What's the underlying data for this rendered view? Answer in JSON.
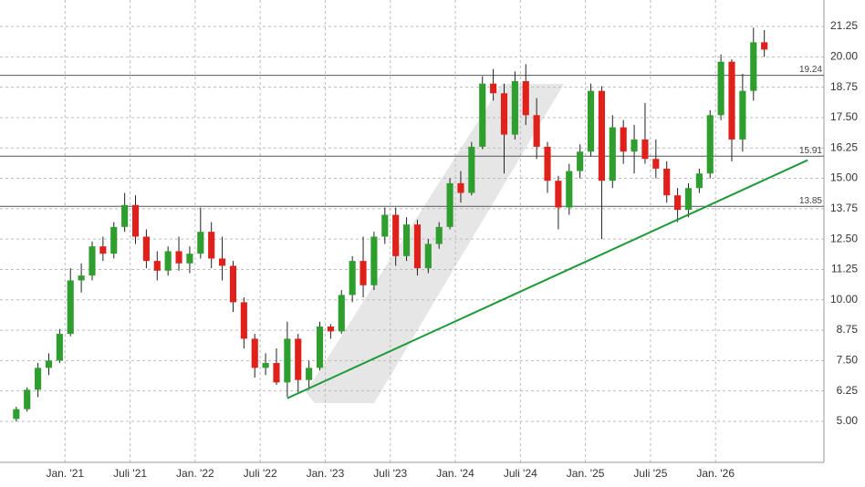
{
  "chart_data": {
    "type": "candlestick",
    "x": [
      "2020-08",
      "2020-09",
      "2020-10",
      "2020-11",
      "2020-12",
      "2021-01",
      "2021-02",
      "2021-03",
      "2021-04",
      "2021-05",
      "2021-06",
      "2021-07",
      "2021-08",
      "2021-09",
      "2021-10",
      "2021-11",
      "2021-12",
      "2022-01",
      "2022-02",
      "2022-03",
      "2022-04",
      "2022-05",
      "2022-06",
      "2022-07",
      "2022-08",
      "2022-09",
      "2022-10",
      "2022-11",
      "2022-12",
      "2023-01",
      "2023-02",
      "2023-03",
      "2023-04",
      "2023-05",
      "2023-06",
      "2023-07",
      "2023-08",
      "2023-09",
      "2023-10",
      "2023-11",
      "2023-12",
      "2024-01",
      "2024-02",
      "2024-03",
      "2024-04",
      "2024-05",
      "2024-06",
      "2024-07",
      "2024-08",
      "2024-09",
      "2024-10",
      "2024-11",
      "2024-12",
      "2025-01",
      "2025-02",
      "2025-03",
      "2025-04",
      "2025-05",
      "2025-06",
      "2025-07",
      "2025-08",
      "2025-09",
      "2025-10",
      "2025-11",
      "2025-12",
      "2026-01",
      "2026-02",
      "2026-03",
      "2026-04",
      "2026-05"
    ],
    "open": [
      5.1,
      5.5,
      6.3,
      7.2,
      7.5,
      8.6,
      10.8,
      11.0,
      12.2,
      11.9,
      13.0,
      13.9,
      12.6,
      11.6,
      11.2,
      12.0,
      11.5,
      11.9,
      12.8,
      11.7,
      11.4,
      9.9,
      8.4,
      7.2,
      7.4,
      6.6,
      8.4,
      6.7,
      7.2,
      8.9,
      8.7,
      10.2,
      11.6,
      10.6,
      12.6,
      13.5,
      11.8,
      13.1,
      11.3,
      12.3,
      13.0,
      14.8,
      14.4,
      16.3,
      18.9,
      18.5,
      16.8,
      19.0,
      17.6,
      16.3,
      14.9,
      13.8,
      15.3,
      16.1,
      18.6,
      14.9,
      17.1,
      16.1,
      16.6,
      15.8,
      15.4,
      14.3,
      13.7,
      14.6,
      15.2,
      17.6,
      19.8,
      16.6,
      18.6,
      20.6
    ],
    "high": [
      5.6,
      6.4,
      7.4,
      7.8,
      8.8,
      11.3,
      11.5,
      12.4,
      12.6,
      13.2,
      14.4,
      14.3,
      12.9,
      12.0,
      12.2,
      12.6,
      12.2,
      13.8,
      13.2,
      12.6,
      11.6,
      10.1,
      8.6,
      7.8,
      8.0,
      9.1,
      8.6,
      7.5,
      9.1,
      9.0,
      10.4,
      11.8,
      12.6,
      12.8,
      13.8,
      13.8,
      13.4,
      13.3,
      12.5,
      13.2,
      15.0,
      15.3,
      16.5,
      19.2,
      19.5,
      18.9,
      19.4,
      19.7,
      18.3,
      16.5,
      15.1,
      15.6,
      16.4,
      18.9,
      18.8,
      17.6,
      17.4,
      17.2,
      18.1,
      16.6,
      15.7,
      14.6,
      14.8,
      15.4,
      17.8,
      20.1,
      19.9,
      19.3,
      21.2,
      21.1
    ],
    "low": [
      5.0,
      5.4,
      6.0,
      6.9,
      7.4,
      8.5,
      10.3,
      10.8,
      11.6,
      11.7,
      12.8,
      12.3,
      11.3,
      10.8,
      11.0,
      11.2,
      11.1,
      11.7,
      11.3,
      10.8,
      9.5,
      8.0,
      6.8,
      6.9,
      6.5,
      6.0,
      6.2,
      6.3,
      7.1,
      8.4,
      8.6,
      9.9,
      10.1,
      10.4,
      12.3,
      11.4,
      11.6,
      11.0,
      11.1,
      12.1,
      12.9,
      14.0,
      14.3,
      16.2,
      18.2,
      15.2,
      16.6,
      17.2,
      15.8,
      14.4,
      12.9,
      13.5,
      15.0,
      15.9,
      12.5,
      14.6,
      15.6,
      15.2,
      15.6,
      15.0,
      14.0,
      13.2,
      13.4,
      14.4,
      15.0,
      17.4,
      15.7,
      16.1,
      18.2,
      20.0
    ],
    "close": [
      5.5,
      6.3,
      7.2,
      7.5,
      8.6,
      10.8,
      11.0,
      12.2,
      11.9,
      13.0,
      13.9,
      12.6,
      11.6,
      11.2,
      12.0,
      11.5,
      11.9,
      12.8,
      11.7,
      11.4,
      9.9,
      8.4,
      7.2,
      7.4,
      6.6,
      8.4,
      6.7,
      7.2,
      8.9,
      8.7,
      10.2,
      11.6,
      10.6,
      12.6,
      13.5,
      11.8,
      13.1,
      11.3,
      12.3,
      13.0,
      14.8,
      14.4,
      16.3,
      18.9,
      18.5,
      16.8,
      19.0,
      17.6,
      16.3,
      14.9,
      13.8,
      15.3,
      16.1,
      18.6,
      14.9,
      17.1,
      16.1,
      16.6,
      15.8,
      15.4,
      14.3,
      13.7,
      14.6,
      15.2,
      17.6,
      19.8,
      16.6,
      18.6,
      20.6,
      20.3
    ],
    "up_color": "#2e9e2e",
    "down_color": "#e0201a",
    "xlim": [
      "2020-07",
      "2026-11"
    ],
    "xticks": [
      {
        "value": "2021-01",
        "label": "Jan. '21"
      },
      {
        "value": "2021-07",
        "label": "Juli '21"
      },
      {
        "value": "2022-01",
        "label": "Jan. '22"
      },
      {
        "value": "2022-07",
        "label": "Juli '22"
      },
      {
        "value": "2023-01",
        "label": "Jan. '23"
      },
      {
        "value": "2023-07",
        "label": "Juli '23"
      },
      {
        "value": "2024-01",
        "label": "Jan. '24"
      },
      {
        "value": "2024-07",
        "label": "Juli '24"
      },
      {
        "value": "2025-01",
        "label": "Jan. '25"
      },
      {
        "value": "2025-07",
        "label": "Juli '25"
      },
      {
        "value": "2026-01",
        "label": "Jan. '26"
      }
    ],
    "ylim": [
      3.31,
      22.34
    ],
    "yticks": [
      {
        "value": 5,
        "label": "5.00"
      },
      6.25,
      {
        "value": 7.5,
        "label": "7.50"
      },
      8.75,
      {
        "value": 10,
        "label": "10.00"
      },
      11.25,
      {
        "value": 12.5,
        "label": "12.50"
      },
      13.75,
      {
        "value": 15,
        "label": "15.00"
      },
      16.25,
      {
        "value": 17.5,
        "label": "17.50"
      },
      18.75,
      {
        "value": 20,
        "label": "20.00"
      },
      21.25
    ],
    "levels": [
      19.24,
      15.91,
      13.85
    ],
    "trend_line": {
      "x": [
        "2022-09",
        "2026-09"
      ],
      "values": [
        5.95,
        15.75
      ],
      "color": "#1f9a3a"
    },
    "grid": true
  }
}
